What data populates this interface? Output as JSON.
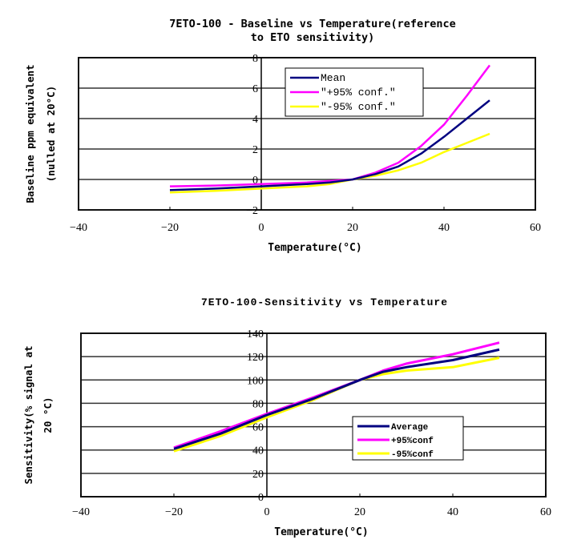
{
  "chart_data": [
    {
      "type": "line",
      "title": "7ETO-100 - Baseline vs Temperature(reference\nto ETO sensitivity)",
      "xlabel": "Temperature(°C)",
      "ylabel_lines": [
        "Baseline ppm equivalent",
        "(nulled at 20°C)"
      ],
      "xlim": [
        -40,
        60
      ],
      "ylim": [
        -2,
        8
      ],
      "xticks": [
        -40,
        -20,
        0,
        20,
        40,
        60
      ],
      "yticks": [
        -2,
        0,
        2,
        4,
        6,
        8
      ],
      "grid": true,
      "legend_position": "top-center",
      "x": [
        -20,
        -10,
        0,
        10,
        15,
        20,
        25,
        30,
        35,
        40,
        45,
        50
      ],
      "series": [
        {
          "name": "Mean",
          "color": "#000080",
          "values": [
            -0.7,
            -0.6,
            -0.45,
            -0.3,
            -0.2,
            0.0,
            0.35,
            0.85,
            1.7,
            2.8,
            4.0,
            5.2
          ]
        },
        {
          "name": "\"+95% conf.\"",
          "color": "#ff00ff",
          "values": [
            -0.45,
            -0.4,
            -0.3,
            -0.2,
            -0.1,
            0.0,
            0.45,
            1.1,
            2.2,
            3.6,
            5.5,
            7.5
          ]
        },
        {
          "name": "\"-95% conf.\"",
          "color": "#ffff00",
          "values": [
            -0.85,
            -0.75,
            -0.6,
            -0.45,
            -0.3,
            0.0,
            0.25,
            0.6,
            1.1,
            1.8,
            2.4,
            3.0
          ]
        }
      ]
    },
    {
      "type": "line",
      "title": "7ETO-100-Sensitivity  vs Temperature",
      "xlabel": "Temperature(°C)",
      "ylabel_lines": [
        "Sensitivity(% signal at",
        "20 °C)"
      ],
      "xlim": [
        -40,
        60
      ],
      "ylim": [
        0,
        140
      ],
      "xticks": [
        -40,
        -20,
        0,
        20,
        40,
        60
      ],
      "yticks": [
        0,
        20,
        40,
        60,
        80,
        100,
        120,
        140
      ],
      "grid": true,
      "legend_position": "center-right",
      "x": [
        -20,
        -10,
        0,
        10,
        20,
        25,
        30,
        40,
        50
      ],
      "series": [
        {
          "name": "Average",
          "color": "#000080",
          "values": [
            41,
            54,
            70,
            84,
            100,
            107,
            111,
            117,
            126
          ]
        },
        {
          "name": "+95%conf",
          "color": "#ff00ff",
          "values": [
            42,
            56,
            71,
            85,
            100,
            108,
            114,
            122,
            132
          ]
        },
        {
          "name": "-95%conf",
          "color": "#ffff00",
          "values": [
            39,
            52,
            68,
            83,
            100,
            105,
            108,
            111,
            119
          ]
        }
      ]
    }
  ]
}
